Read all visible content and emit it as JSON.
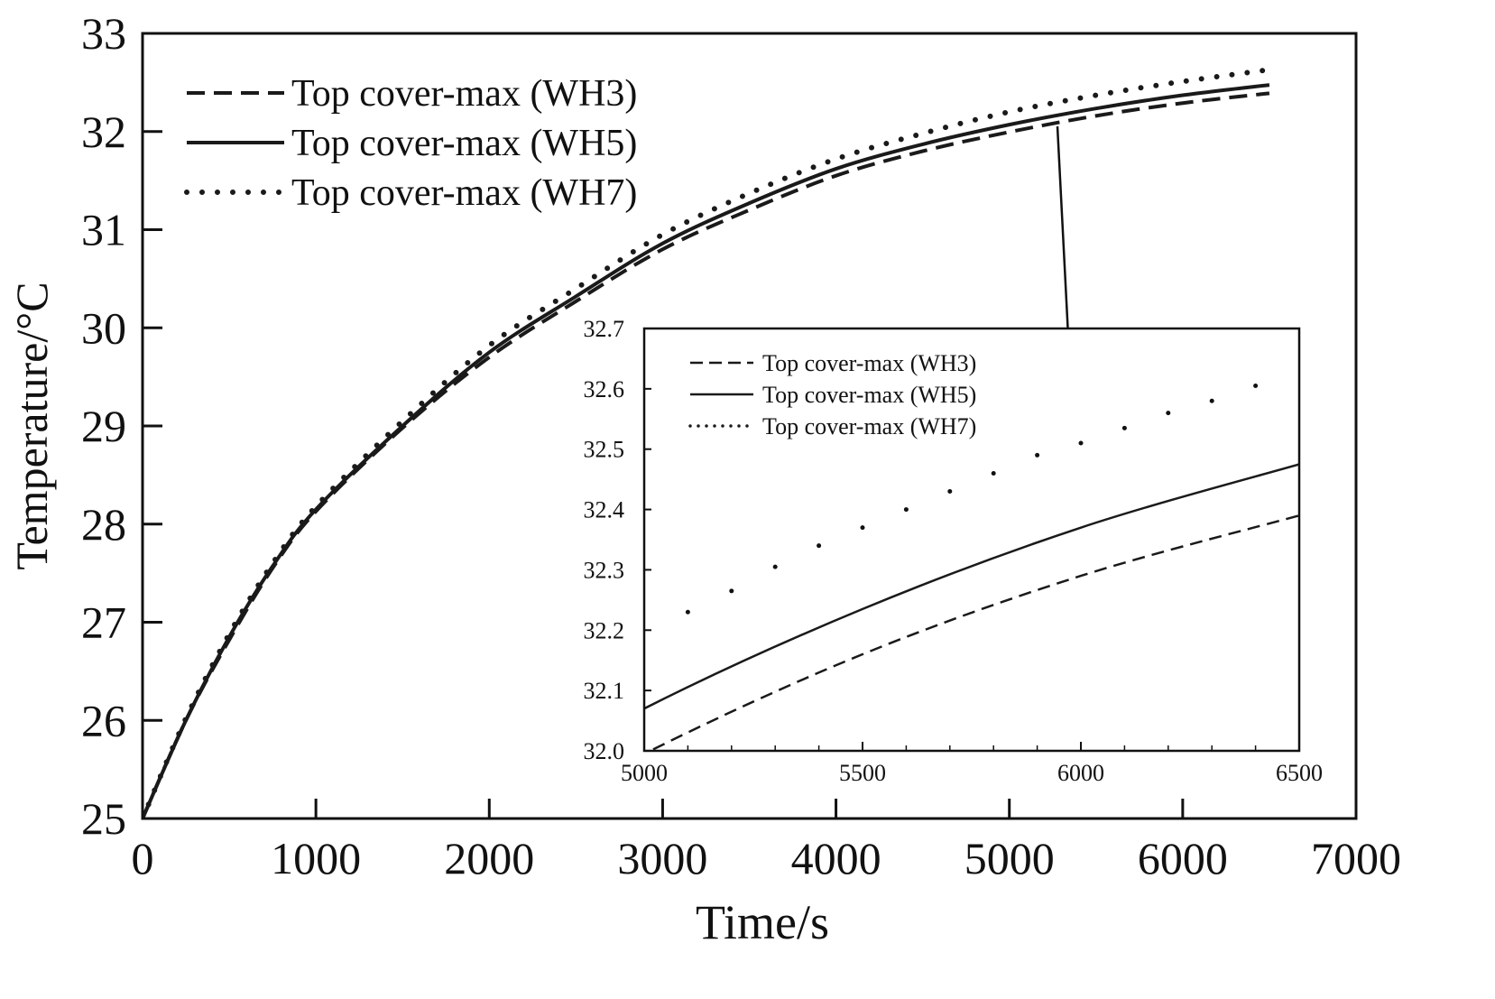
{
  "chart_data": {
    "type": "line",
    "title": "",
    "xlabel": "Time/s",
    "ylabel": "Temperature/°C",
    "xlim": [
      0,
      7000
    ],
    "ylim": [
      25,
      33
    ],
    "xticks": [
      "0",
      "1000",
      "2000",
      "3000",
      "4000",
      "5000",
      "6000",
      "7000"
    ],
    "yticks": [
      "25",
      "26",
      "27",
      "28",
      "29",
      "30",
      "31",
      "32",
      "33"
    ],
    "legend_position": "top-left",
    "x": [
      0,
      250,
      500,
      750,
      1000,
      1500,
      2000,
      2500,
      3000,
      3500,
      4000,
      4500,
      5000,
      5500,
      6000,
      6500
    ],
    "series": [
      {
        "name": "Top cover-max (WH3)",
        "style": "dashed",
        "values": [
          25,
          26.0,
          26.82,
          27.55,
          28.13,
          28.98,
          29.7,
          30.27,
          30.8,
          31.2,
          31.55,
          31.8,
          31.995,
          32.16,
          32.29,
          32.39
        ]
      },
      {
        "name": "Top cover-max (WH5)",
        "style": "solid",
        "values": [
          25,
          26.0,
          26.85,
          27.57,
          28.15,
          29.0,
          29.75,
          30.32,
          30.86,
          31.27,
          31.62,
          31.87,
          32.07,
          32.235,
          32.37,
          32.475
        ]
      },
      {
        "name": "Top cover-max (WH7)",
        "style": "dotted",
        "values": [
          25,
          26.02,
          26.88,
          27.6,
          28.18,
          29.05,
          29.82,
          30.4,
          30.95,
          31.37,
          31.72,
          31.98,
          32.2,
          32.37,
          32.51,
          32.63
        ]
      }
    ],
    "inset": {
      "xlim": [
        5000,
        6500
      ],
      "ylim": [
        32.0,
        32.7
      ],
      "xticks": [
        "5000",
        "5500",
        "6000",
        "6500"
      ],
      "yticks": [
        "32.0",
        "32.1",
        "32.2",
        "32.3",
        "32.4",
        "32.5",
        "32.6",
        "32.7"
      ],
      "legend_position": "top-left",
      "wh7_points": {
        "x": [
          5100,
          5200,
          5300,
          5400,
          5500,
          5600,
          5700,
          5800,
          5900,
          6000,
          6100,
          6200,
          6300,
          6400
        ],
        "values": [
          32.23,
          32.265,
          32.305,
          32.34,
          32.37,
          32.4,
          32.43,
          32.46,
          32.49,
          32.51,
          32.535,
          32.56,
          32.58,
          32.605
        ]
      }
    }
  }
}
